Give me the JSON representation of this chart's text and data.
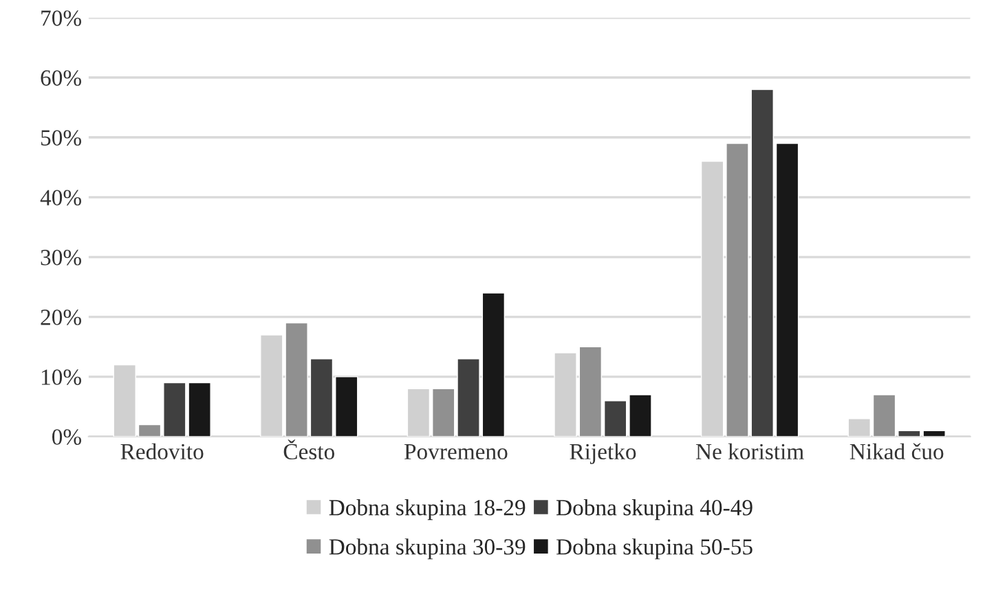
{
  "chart_data": {
    "type": "bar",
    "categories": [
      "Redovito",
      "Često",
      "Povremeno",
      "Rijetko",
      "Ne koristim",
      "Nikad čuo"
    ],
    "series": [
      {
        "name": "Dobna skupina 18-29",
        "color": "#d0d0d0",
        "values": [
          12,
          17,
          8,
          14,
          46,
          3
        ]
      },
      {
        "name": "Dobna skupina 30-39",
        "color": "#909090",
        "values": [
          2,
          19,
          8,
          15,
          49,
          7
        ]
      },
      {
        "name": "Dobna skupina 40-49",
        "color": "#404040",
        "values": [
          9,
          13,
          13,
          6,
          58,
          1
        ]
      },
      {
        "name": "Dobna skupina 50-55",
        "color": "#181818",
        "values": [
          9,
          10,
          24,
          7,
          49,
          1
        ]
      }
    ],
    "ylim": [
      0,
      70
    ],
    "yticks": [
      {
        "value": 0,
        "label": "0%"
      },
      {
        "value": 10,
        "label": "10%"
      },
      {
        "value": 20,
        "label": "20%"
      },
      {
        "value": 30,
        "label": "30%"
      },
      {
        "value": 40,
        "label": "40%"
      },
      {
        "value": 50,
        "label": "50%"
      },
      {
        "value": 60,
        "label": "60%"
      },
      {
        "value": 70,
        "label": "70%"
      }
    ],
    "grid": "y",
    "legend": "bottom"
  }
}
